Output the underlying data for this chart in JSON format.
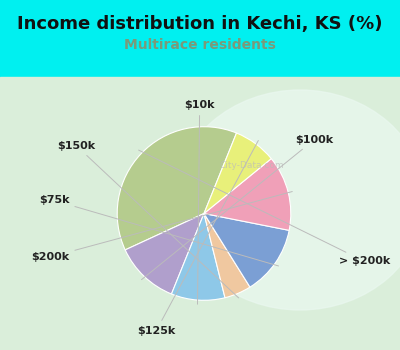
{
  "title": "Income distribution in Kechi, KS (%)",
  "subtitle": "Multirace residents",
  "title_color": "#111111",
  "subtitle_color": "#7a9a7a",
  "bg_cyan": "#00f0f0",
  "chart_bg_color": "#e0f0e8",
  "labels": [
    "> $200k",
    "$100k",
    "$10k",
    "$150k",
    "$75k",
    "$200k",
    "$125k"
  ],
  "values": [
    38,
    12,
    10,
    5,
    13,
    14,
    8
  ],
  "colors": [
    "#b5cc8e",
    "#b09fcc",
    "#8ec8e8",
    "#f0c8a0",
    "#7b9fd4",
    "#f0a0b8",
    "#e8f07a"
  ],
  "startangle": 68,
  "title_fontsize": 13,
  "subtitle_fontsize": 10,
  "label_fontsize": 8
}
